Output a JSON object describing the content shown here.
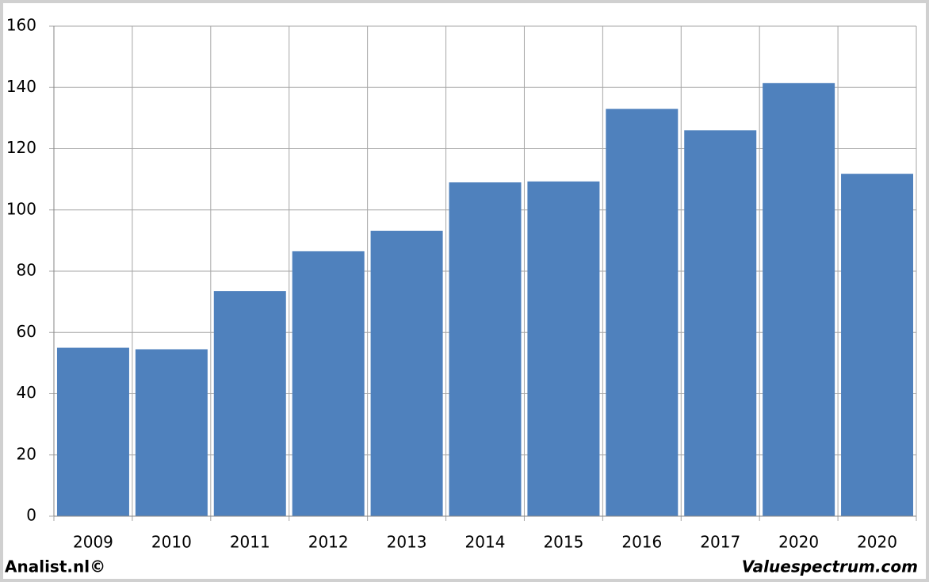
{
  "chart_data": {
    "type": "bar",
    "categories": [
      "2009",
      "2010",
      "2011",
      "2012",
      "2013",
      "2014",
      "2015",
      "2016",
      "2017",
      "2020",
      "2020"
    ],
    "values": [
      55,
      54.5,
      73.5,
      86.5,
      93.2,
      109,
      109.3,
      133,
      126,
      141.4,
      111.8
    ],
    "color": "#4f81bd",
    "ylim": [
      0,
      160
    ],
    "yticks": [
      0,
      20,
      40,
      60,
      80,
      100,
      120,
      140,
      160
    ],
    "grid": true,
    "footer_left": "Analist.nl©",
    "footer_right": "Valuespectrum.com"
  }
}
